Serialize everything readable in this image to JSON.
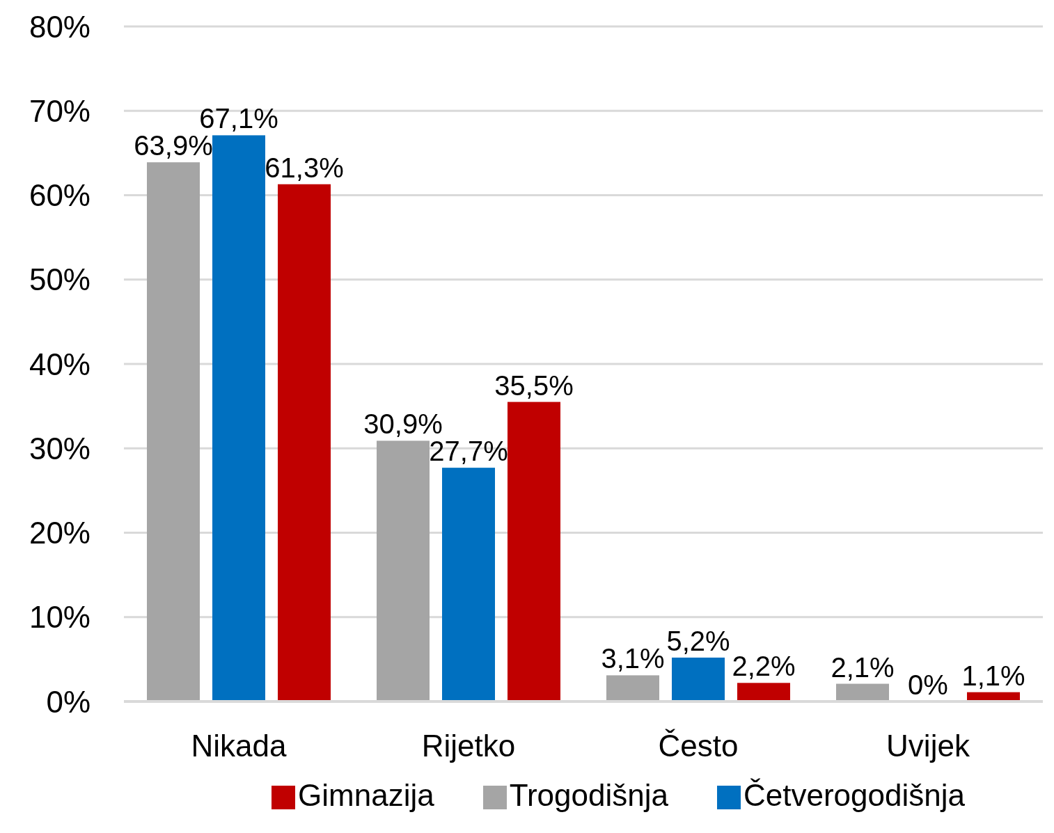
{
  "chart_data": {
    "type": "bar",
    "categories": [
      "Nikada",
      "Rijetko",
      "Često",
      "Uvijek"
    ],
    "series": [
      {
        "name": "Trogodišnja",
        "color": "#a5a5a5",
        "values": [
          63.9,
          30.9,
          3.1,
          2.1
        ],
        "value_labels": [
          "63,9%",
          "30,9%",
          "3,1%",
          "2,1%"
        ]
      },
      {
        "name": "Četverogodišnja",
        "color": "#0070c0",
        "values": [
          67.1,
          27.7,
          5.2,
          0
        ],
        "value_labels": [
          "67,1%",
          "27,7%",
          "5,2%",
          "0%"
        ]
      },
      {
        "name": "Gimnazija",
        "color": "#c00000",
        "values": [
          61.3,
          35.5,
          2.2,
          1.1
        ],
        "value_labels": [
          "61,3%",
          "35,5%",
          "2,2%",
          "1,1%"
        ]
      }
    ],
    "ylim": [
      0,
      80
    ],
    "yticks": [
      {
        "value": 0,
        "label": "0%"
      },
      {
        "value": 10,
        "label": "10%"
      },
      {
        "value": 20,
        "label": "20%"
      },
      {
        "value": 30,
        "label": "30%"
      },
      {
        "value": 40,
        "label": "40%"
      },
      {
        "value": 50,
        "label": "50%"
      },
      {
        "value": 60,
        "label": "60%"
      },
      {
        "value": 70,
        "label": "70%"
      },
      {
        "value": 80,
        "label": "80%"
      }
    ],
    "grid": "y",
    "legend": "bottom"
  }
}
